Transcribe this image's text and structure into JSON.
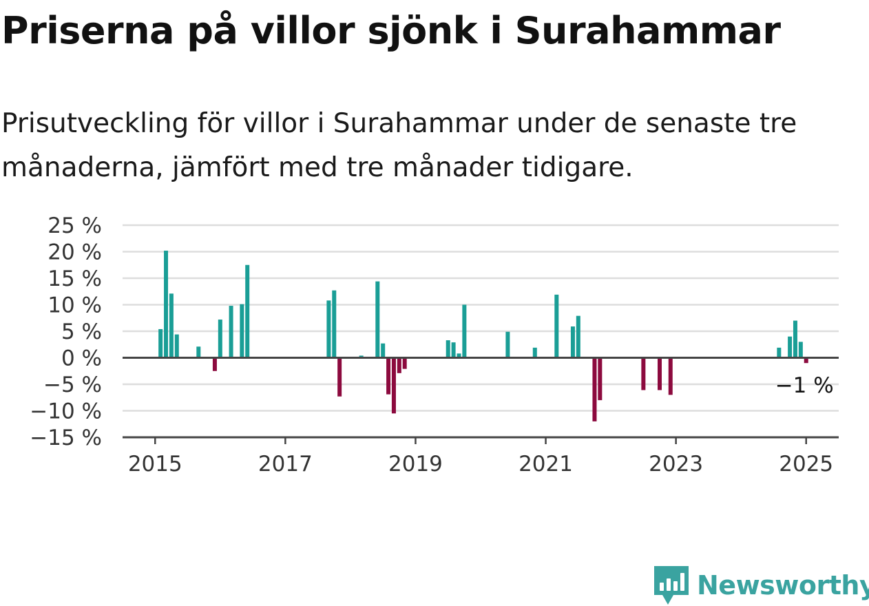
{
  "title": "Priserna på villor sjönk i Surahammar",
  "subtitle": "Prisutveckling för villor i Surahammar under de senaste tre månaderna, jämfört med tre månader tidigare.",
  "brand": {
    "name": "Newsworthy",
    "icon": "newsworthy-logo-icon"
  },
  "colors": {
    "positive": "#1a9e96",
    "negative": "#8c0a3e",
    "grid": "#dddddd",
    "axis": "#444444"
  },
  "chart_data": {
    "type": "bar",
    "x_unit": "date (year-month)",
    "ylim": [
      -15,
      25
    ],
    "xlim": [
      "2014-07",
      "2025-07"
    ],
    "yticks": [
      25,
      20,
      15,
      10,
      5,
      0,
      -5,
      -10,
      -15
    ],
    "ytick_labels": [
      "25 %",
      "20 %",
      "15 %",
      "10 %",
      "5 %",
      "0 %",
      "−5 %",
      "−10 %",
      "−15 %"
    ],
    "xticks": [
      "2015-01",
      "2017-01",
      "2019-01",
      "2021-01",
      "2023-01",
      "2025-01"
    ],
    "xtick_labels": [
      "2015",
      "2017",
      "2019",
      "2021",
      "2023",
      "2025"
    ],
    "grid": true,
    "legend": "none",
    "annotation": {
      "text": "−1 %",
      "x": "2025-01",
      "y": -1
    },
    "series": [
      {
        "values": [
          {
            "x": "2015-02",
            "y": 5.4
          },
          {
            "x": "2015-03",
            "y": 20.2
          },
          {
            "x": "2015-04",
            "y": 12.1
          },
          {
            "x": "2015-05",
            "y": 4.4
          },
          {
            "x": "2015-09",
            "y": 2.1
          },
          {
            "x": "2015-12",
            "y": -2.5
          },
          {
            "x": "2016-01",
            "y": 7.2
          },
          {
            "x": "2016-03",
            "y": 9.8
          },
          {
            "x": "2016-05",
            "y": 10.1
          },
          {
            "x": "2016-06",
            "y": 17.5
          },
          {
            "x": "2017-09",
            "y": 10.8
          },
          {
            "x": "2017-10",
            "y": 12.7
          },
          {
            "x": "2017-11",
            "y": -7.3
          },
          {
            "x": "2018-03",
            "y": 0.4
          },
          {
            "x": "2018-06",
            "y": 14.4
          },
          {
            "x": "2018-07",
            "y": 2.7
          },
          {
            "x": "2018-08",
            "y": -6.9
          },
          {
            "x": "2018-09",
            "y": -10.5
          },
          {
            "x": "2018-10",
            "y": -2.9
          },
          {
            "x": "2018-11",
            "y": -2.1
          },
          {
            "x": "2019-07",
            "y": 3.3
          },
          {
            "x": "2019-08",
            "y": 2.9
          },
          {
            "x": "2019-09",
            "y": 0.8
          },
          {
            "x": "2019-10",
            "y": 10.0
          },
          {
            "x": "2020-06",
            "y": 4.9
          },
          {
            "x": "2020-11",
            "y": 1.9
          },
          {
            "x": "2021-03",
            "y": 11.9
          },
          {
            "x": "2021-06",
            "y": 5.9
          },
          {
            "x": "2021-07",
            "y": 7.9
          },
          {
            "x": "2021-10",
            "y": -12.0
          },
          {
            "x": "2021-11",
            "y": -8.0
          },
          {
            "x": "2022-07",
            "y": -6.1
          },
          {
            "x": "2022-10",
            "y": -6.1
          },
          {
            "x": "2022-12",
            "y": -7.0
          },
          {
            "x": "2024-08",
            "y": 1.9
          },
          {
            "x": "2024-10",
            "y": 4.0
          },
          {
            "x": "2024-11",
            "y": 7.0
          },
          {
            "x": "2024-12",
            "y": 3.0
          },
          {
            "x": "2025-01",
            "y": -1.0
          }
        ]
      }
    ]
  }
}
